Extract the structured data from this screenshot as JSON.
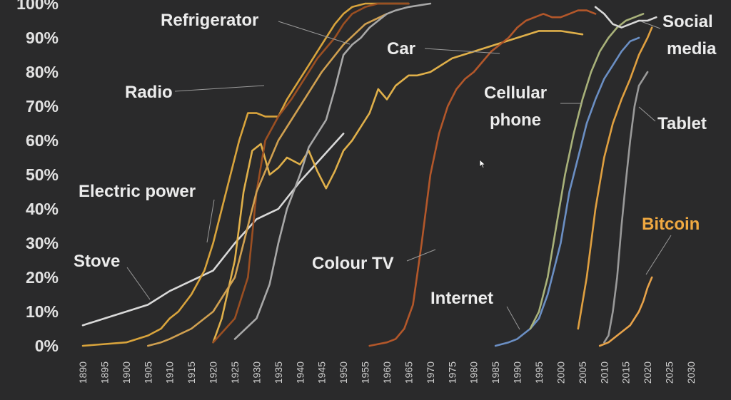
{
  "chart_data": {
    "type": "line",
    "title": "",
    "xlabel": "",
    "ylabel": "",
    "xlim": [
      1890,
      2030
    ],
    "ylim": [
      0,
      100
    ],
    "grid": false,
    "yticks": [
      "0%",
      "10%",
      "20%",
      "30%",
      "40%",
      "50%",
      "60%",
      "70%",
      "80%",
      "90%",
      "100%"
    ],
    "xticks": [
      "1890",
      "1895",
      "1900",
      "1905",
      "1910",
      "1915",
      "1920",
      "1925",
      "1930",
      "1935",
      "1940",
      "1945",
      "1950",
      "1955",
      "1960",
      "1965",
      "1970",
      "1975",
      "1980",
      "1985",
      "1990",
      "1995",
      "2000",
      "2005",
      "2010",
      "2015",
      "2020",
      "2025",
      "2030"
    ],
    "series": [
      {
        "name": "Stove",
        "color": "#d9d9d9",
        "x": [
          1890,
          1895,
          1900,
          1905,
          1910,
          1915,
          1920,
          1925,
          1930,
          1935,
          1940,
          1945,
          1950
        ],
        "y": [
          6,
          8,
          10,
          12,
          16,
          19,
          22,
          30,
          37,
          40,
          48,
          55,
          62
        ]
      },
      {
        "name": "Electric power",
        "color": "#d9a43c",
        "x": [
          1890,
          1900,
          1905,
          1908,
          1910,
          1912,
          1915,
          1918,
          1920,
          1923,
          1926,
          1928,
          1930,
          1932,
          1935,
          1937,
          1940,
          1942,
          1944,
          1946,
          1948,
          1950,
          1952,
          1955,
          1958,
          1960,
          1965
        ],
        "y": [
          0,
          1,
          3,
          5,
          8,
          10,
          15,
          22,
          30,
          45,
          60,
          68,
          68,
          67,
          67,
          72,
          78,
          82,
          86,
          90,
          94,
          97,
          99,
          100,
          100,
          100,
          100
        ]
      },
      {
        "name": "Radio",
        "color": "#e0b04a",
        "x": [
          1920,
          1922,
          1925,
          1927,
          1929,
          1931,
          1933,
          1935,
          1937,
          1940,
          1942,
          1944,
          1946,
          1948,
          1950,
          1952,
          1954,
          1956,
          1958,
          1960,
          1962,
          1965,
          1967,
          1970,
          1975,
          1980,
          1985,
          1990,
          1995,
          2000,
          2005
        ],
        "y": [
          1,
          8,
          25,
          45,
          57,
          59,
          50,
          52,
          55,
          53,
          57,
          51,
          46,
          51,
          57,
          60,
          64,
          68,
          75,
          72,
          76,
          79,
          79,
          80,
          84,
          86,
          88,
          90,
          92,
          92,
          91
        ]
      },
      {
        "name": "Refrigerator",
        "color": "#9b4f22",
        "x": [
          1920,
          1925,
          1928,
          1930,
          1932,
          1935,
          1938,
          1940,
          1942,
          1944,
          1946,
          1948,
          1950,
          1952,
          1955,
          1958,
          1960,
          1965
        ],
        "y": [
          1,
          8,
          20,
          45,
          60,
          67,
          72,
          76,
          80,
          84,
          87,
          90,
          94,
          97,
          99,
          100,
          100,
          100
        ]
      },
      {
        "name": "Car",
        "color": "#d0a050",
        "x": [
          1905,
          1908,
          1910,
          1915,
          1920,
          1925,
          1928,
          1930,
          1935,
          1940,
          1945,
          1950,
          1955,
          1960
        ],
        "y": [
          0,
          1,
          2,
          5,
          10,
          20,
          35,
          45,
          60,
          70,
          80,
          88,
          94,
          97
        ]
      },
      {
        "name": "Colour TV",
        "color": "#a8a8a8",
        "x": [
          1925,
          1930,
          1933,
          1935,
          1937,
          1940,
          1942,
          1944,
          1946,
          1948,
          1950,
          1952,
          1954,
          1956,
          1958,
          1960,
          1962,
          1965,
          1970
        ],
        "y": [
          2,
          8,
          18,
          30,
          40,
          50,
          58,
          62,
          66,
          75,
          85,
          88,
          90,
          93,
          95,
          97,
          98,
          99,
          100
        ]
      },
      {
        "name": "Cellular phone",
        "color": "#b3572a",
        "x": [
          1956,
          1960,
          1962,
          1964,
          1966,
          1968,
          1970,
          1972,
          1974,
          1976,
          1978,
          1980,
          1982,
          1984,
          1986,
          1988,
          1990,
          1992,
          1994,
          1996,
          1998,
          2000,
          2002,
          2004,
          2006,
          2008
        ],
        "y": [
          0,
          1,
          2,
          5,
          12,
          30,
          50,
          62,
          70,
          75,
          78,
          80,
          83,
          86,
          88,
          90,
          93,
          95,
          96,
          97,
          96,
          96,
          97,
          98,
          98,
          97
        ]
      },
      {
        "name": "Internet",
        "color": "#6b8fc4",
        "x": [
          1985,
          1988,
          1990,
          1993,
          1995,
          1997,
          2000,
          2002,
          2004,
          2006,
          2008,
          2010,
          2012,
          2014,
          2016,
          2018
        ],
        "y": [
          0,
          1,
          2,
          5,
          8,
          15,
          30,
          45,
          55,
          65,
          72,
          78,
          82,
          86,
          89,
          90
        ]
      },
      {
        "name": "Social media",
        "color": "#a9b27a",
        "x": [
          1993,
          1995,
          1997,
          1999,
          2001,
          2003,
          2005,
          2007,
          2009,
          2011,
          2013,
          2015,
          2017,
          2019
        ],
        "y": [
          5,
          10,
          20,
          35,
          50,
          62,
          72,
          80,
          86,
          90,
          93,
          95,
          96,
          97
        ]
      },
      {
        "name": "Tablet",
        "color": "#9a9a9a",
        "x": [
          2010,
          2011,
          2012,
          2013,
          2014,
          2015,
          2016,
          2017,
          2018,
          2019,
          2020
        ],
        "y": [
          1,
          3,
          10,
          20,
          35,
          48,
          60,
          70,
          76,
          78,
          80
        ]
      },
      {
        "name": "Bitcoin",
        "color": "#e8a34a",
        "x": [
          2009,
          2011,
          2013,
          2015,
          2016,
          2017,
          2018,
          2019,
          2020,
          2021
        ],
        "y": [
          0,
          1,
          3,
          5,
          6,
          8,
          10,
          13,
          17,
          20
        ]
      },
      {
        "name": "",
        "color": "#e0a040",
        "x": [
          2004,
          2006,
          2008,
          2010,
          2012,
          2014,
          2016,
          2018,
          2020,
          2021
        ],
        "y": [
          5,
          20,
          40,
          55,
          65,
          72,
          78,
          85,
          90,
          93
        ]
      },
      {
        "name": "",
        "color": "#d8d8d8",
        "x": [
          2008,
          2010,
          2012,
          2014,
          2016,
          2018,
          2020,
          2022
        ],
        "y": [
          99,
          97,
          94,
          93,
          94,
          95,
          95,
          96
        ]
      }
    ],
    "annotations": [
      "Refrigerator",
      "Car",
      "Radio",
      "Electric power",
      "Stove",
      "Colour TV",
      "Internet",
      "Cellular phone",
      "Social media",
      "Tablet",
      "Bitcoin"
    ]
  },
  "labels": {
    "refrigerator": "Refrigerator",
    "car": "Car",
    "radio": "Radio",
    "electric_power": "Electric power",
    "stove": "Stove",
    "colour_tv": "Colour TV",
    "internet": "Internet",
    "cellular_line1": "Cellular",
    "cellular_line2": "phone",
    "social_line1": "Social",
    "social_line2": "media",
    "tablet": "Tablet",
    "bitcoin": "Bitcoin"
  },
  "colors": {
    "background": "#2a2a2b",
    "bitcoin_label": "#f0a941",
    "text": "#ececec"
  }
}
